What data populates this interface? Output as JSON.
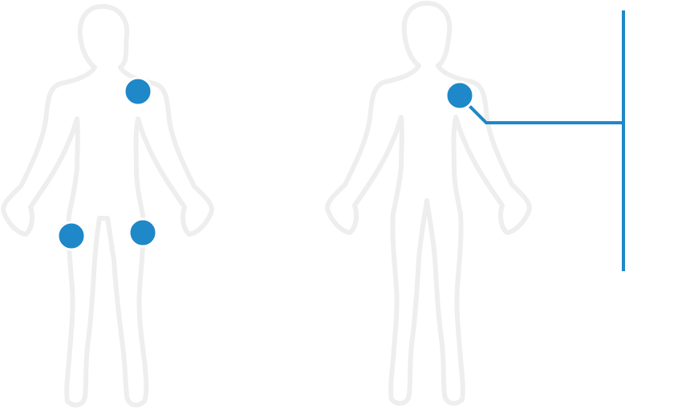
{
  "colors": {
    "body_outline": "#eeeeee",
    "marker_fill": "#1e88c8",
    "marker_ring": "#ffffff",
    "callout_line": "#1e88c8"
  },
  "figures": [
    {
      "name": "figure-front",
      "markers": [
        {
          "name": "marker-left-shoulder",
          "body_part": "shoulder"
        },
        {
          "name": "marker-right-thigh",
          "body_part": "thigh"
        },
        {
          "name": "marker-left-thigh",
          "body_part": "thigh"
        }
      ]
    },
    {
      "name": "figure-back",
      "markers": [
        {
          "name": "marker-shoulder-selected",
          "body_part": "shoulder",
          "selected": true
        }
      ]
    }
  ]
}
